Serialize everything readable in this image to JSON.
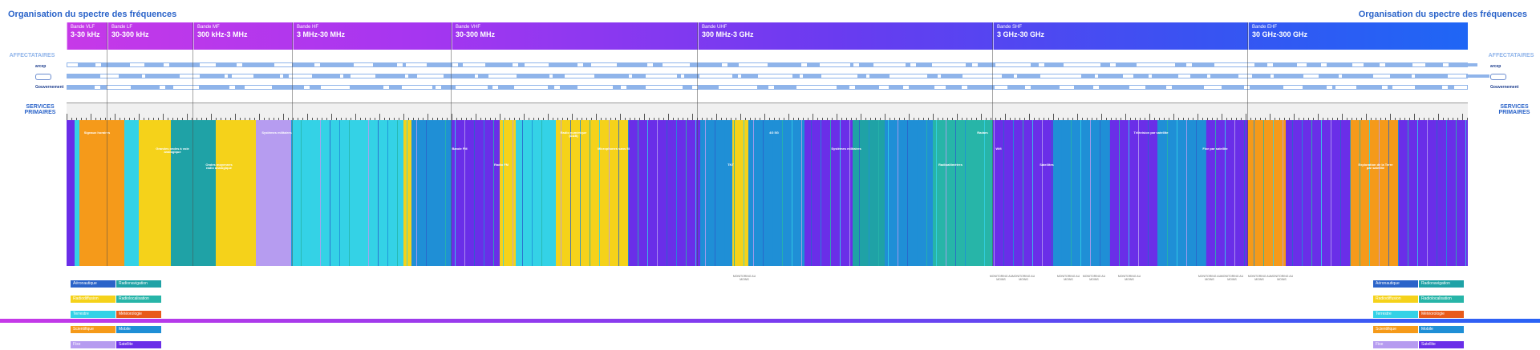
{
  "titles": {
    "left": "Organisation du spectre des fréquences",
    "right": "Organisation du spectre des fréquences"
  },
  "side": {
    "affectataires": "AFFECTATAIRES",
    "services": "SERVICES PRIMAIRES",
    "arcep": "arcep",
    "gouv": "Gouvernement"
  },
  "bands": [
    {
      "label": "Bande VLF",
      "range": "3-30 kHz"
    },
    {
      "label": "Bande LF",
      "range": "30-300 kHz"
    },
    {
      "label": "Bande MF",
      "range": "300 kHz-3 MHz"
    },
    {
      "label": "Bande HF",
      "range": "3 MHz-30 MHz"
    },
    {
      "label": "Bande VHF",
      "range": "30-300 MHz"
    },
    {
      "label": "Bande UHF",
      "range": "300 MHz-3 GHz"
    },
    {
      "label": "Bande SHF",
      "range": "3 GHz-30 GHz"
    },
    {
      "label": "Bande EHF",
      "range": "30 GHz-300 GHz"
    }
  ],
  "legend": [
    {
      "label": "Aéronautique",
      "color": "#2a63c9"
    },
    {
      "label": "Radiodiffusion",
      "color": "#f5d21a"
    },
    {
      "label": "Fixe",
      "color": "#b69cf0"
    },
    {
      "label": "Scientifique",
      "color": "#f59a1a"
    },
    {
      "label": "Terrestre",
      "color": "#34d2e6"
    },
    {
      "label": "Radionavigation",
      "color": "#1fa2a6"
    },
    {
      "label": "Radiolocalisation",
      "color": "#27b5a8"
    },
    {
      "label": "Météorologie",
      "color": "#e85a1a"
    },
    {
      "label": "Mobile",
      "color": "#1f8fd6"
    },
    {
      "label": "Satellite",
      "color": "#6a2ee8"
    }
  ],
  "legend_right": [
    {
      "label": "Aéronautique",
      "color": "#2a63c9"
    },
    {
      "label": "Radiodiffusion",
      "color": "#f5d21a"
    },
    {
      "label": "Fixe",
      "color": "#b69cf0"
    },
    {
      "label": "Scientifique",
      "color": "#f59a1a"
    },
    {
      "label": "Terrestre",
      "color": "#34d2e6"
    },
    {
      "label": "Radionavigation",
      "color": "#1fa2a6"
    },
    {
      "label": "Radiolocalisation",
      "color": "#27b5a8"
    },
    {
      "label": "Météorologie",
      "color": "#e85a1a"
    },
    {
      "label": "Mobile",
      "color": "#1f8fd6"
    },
    {
      "label": "Satellite",
      "color": "#6a2ee8"
    }
  ],
  "service_labels": [
    "Signaux horaires",
    "Grandes ondes à voie analogique",
    "Ondes moyennes radio analogique",
    "Systèmes militaires",
    "Bande FM",
    "Radio FM",
    "Radio numérique (DAB)",
    "Microphones sans fil",
    "TNT",
    "4G 5G",
    "Systèmes militaires",
    "Radioaltimètres",
    "Radars",
    "Wifi",
    "Satellites",
    "Télévision par satellite",
    "Fixe par satellite",
    "Exploration de la Terre par satellite"
  ],
  "marks": [
    "MONITORING AU MOINS",
    "MONITORING AU MOINS",
    "MONITORING AU MOINS",
    "MONITORING AU MOINS",
    "MONITORING AU MOINS",
    "MONITORING AU MOINS",
    "MONITORING AU MOINS",
    "MONITORING AU MOINS",
    "MONITORING AU MOINS",
    "MONITORING AU MOINS"
  ]
}
